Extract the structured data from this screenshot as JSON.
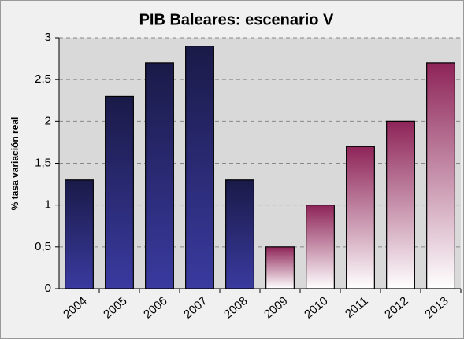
{
  "chart_data": {
    "type": "bar",
    "title": "PIB Baleares: escenario V",
    "y_label": "% tasa variación real",
    "categories": [
      "2004",
      "2005",
      "2006",
      "2007",
      "2008",
      "2009",
      "2010",
      "2011",
      "2012",
      "2013"
    ],
    "values": [
      1.3,
      2.3,
      2.7,
      2.9,
      1.3,
      0.5,
      1.0,
      1.7,
      2.0,
      2.7
    ],
    "bar_colors": [
      [
        "#1a1a48",
        "#3a3aa0"
      ],
      [
        "#1a1a48",
        "#3a3aa0"
      ],
      [
        "#1a1a48",
        "#3a3aa0"
      ],
      [
        "#1a1a48",
        "#3a3aa0"
      ],
      [
        "#1a1a48",
        "#3a3aa0"
      ],
      [
        "#8e2458",
        "#ffffff"
      ],
      [
        "#8e2458",
        "#ffffff"
      ],
      [
        "#8e2458",
        "#ffffff"
      ],
      [
        "#8e2458",
        "#ffffff"
      ],
      [
        "#8e2458",
        "#ffffff"
      ]
    ],
    "ylim": [
      0,
      3
    ],
    "yticks": [
      0,
      {
        "value": 0.5,
        "label": "0,5"
      },
      1,
      {
        "value": 1.5,
        "label": "1,5"
      },
      2,
      {
        "value": 2.5,
        "label": "2,5"
      },
      3
    ],
    "grid": true
  }
}
